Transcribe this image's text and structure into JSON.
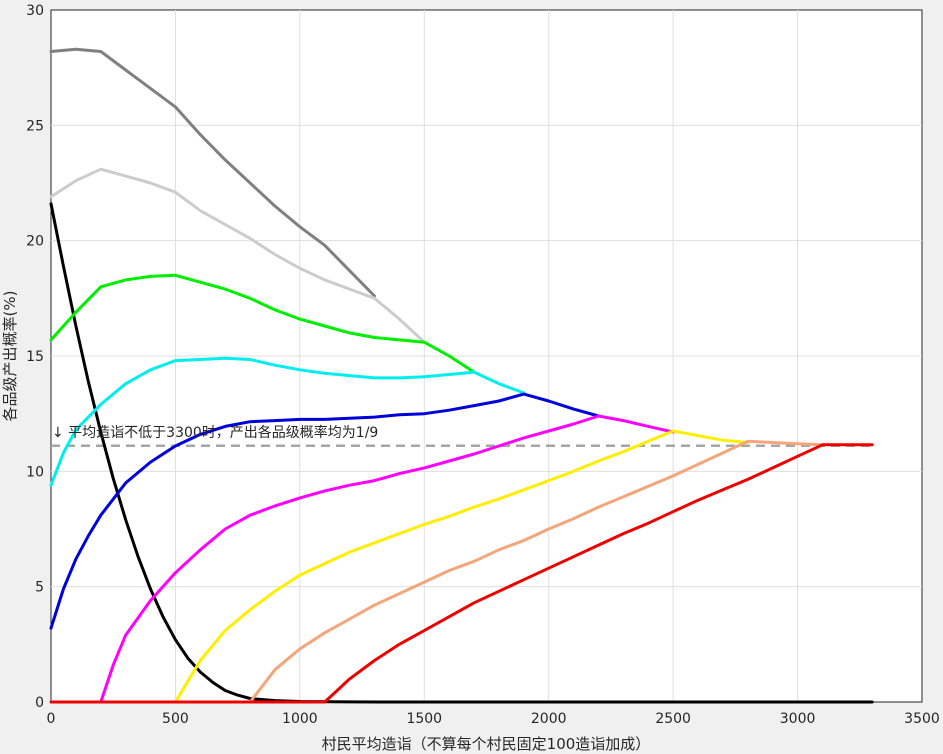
{
  "chart_data": {
    "type": "line",
    "title": "",
    "xlabel": "村民平均造诣（不算每个村民固定100造诣加成）",
    "ylabel": "各品级产出概率(%)",
    "xlim": [
      0,
      3500
    ],
    "ylim": [
      0,
      30
    ],
    "xticks": [
      "0",
      "500",
      "1000",
      "1500",
      "2000",
      "2500",
      "3000",
      "3500"
    ],
    "yticks": [
      "0",
      "5",
      "10",
      "15",
      "20",
      "25",
      "30"
    ],
    "grid": true,
    "annotation": "↓ 平均造诣不低于3300时，产出各品级概率均为1/9",
    "reference_line": {
      "y": 11.11,
      "x": [
        0,
        3300
      ],
      "color": "#a6a6a6",
      "style": "dashed"
    },
    "series": [
      {
        "color": "#000000",
        "points": [
          [
            0,
            21.6
          ],
          [
            50,
            18.9
          ],
          [
            100,
            16.3
          ],
          [
            150,
            13.9
          ],
          [
            200,
            11.7
          ],
          [
            250,
            9.7
          ],
          [
            300,
            7.9
          ],
          [
            350,
            6.3
          ],
          [
            400,
            4.9
          ],
          [
            450,
            3.7
          ],
          [
            500,
            2.7
          ],
          [
            550,
            1.9
          ],
          [
            600,
            1.3
          ],
          [
            650,
            0.85
          ],
          [
            700,
            0.5
          ],
          [
            750,
            0.3
          ],
          [
            800,
            0.15
          ],
          [
            900,
            0.06
          ],
          [
            1000,
            0.02
          ],
          [
            1200,
            0.005
          ],
          [
            1500,
            0
          ],
          [
            2000,
            0
          ],
          [
            2500,
            0
          ],
          [
            3000,
            0
          ],
          [
            3300,
            0
          ]
        ]
      },
      {
        "color": "#808080",
        "points": [
          [
            0,
            28.2
          ],
          [
            100,
            28.3
          ],
          [
            200,
            28.2
          ],
          [
            300,
            27.4
          ],
          [
            400,
            26.6
          ],
          [
            500,
            25.8
          ],
          [
            600,
            24.6
          ],
          [
            700,
            23.5
          ],
          [
            800,
            22.5
          ],
          [
            900,
            21.5
          ],
          [
            1000,
            20.6
          ],
          [
            1100,
            19.8
          ],
          [
            1200,
            18.7
          ],
          [
            1300,
            17.6
          ]
        ]
      },
      {
        "color": "#cccccc",
        "points": [
          [
            0,
            21.9
          ],
          [
            100,
            22.6
          ],
          [
            200,
            23.1
          ],
          [
            300,
            22.8
          ],
          [
            400,
            22.5
          ],
          [
            500,
            22.1
          ],
          [
            600,
            21.3
          ],
          [
            700,
            20.7
          ],
          [
            800,
            20.1
          ],
          [
            900,
            19.4
          ],
          [
            1000,
            18.8
          ],
          [
            1100,
            18.3
          ],
          [
            1200,
            17.9
          ],
          [
            1300,
            17.5
          ],
          [
            1400,
            16.6
          ],
          [
            1500,
            15.6
          ]
        ]
      },
      {
        "color": "#00ee00",
        "points": [
          [
            0,
            15.7
          ],
          [
            100,
            16.9
          ],
          [
            200,
            18.0
          ],
          [
            300,
            18.3
          ],
          [
            400,
            18.45
          ],
          [
            500,
            18.5
          ],
          [
            600,
            18.2
          ],
          [
            700,
            17.9
          ],
          [
            800,
            17.5
          ],
          [
            900,
            17.0
          ],
          [
            1000,
            16.6
          ],
          [
            1100,
            16.3
          ],
          [
            1200,
            16.0
          ],
          [
            1300,
            15.8
          ],
          [
            1400,
            15.7
          ],
          [
            1500,
            15.6
          ],
          [
            1600,
            15.0
          ],
          [
            1700,
            14.3
          ]
        ]
      },
      {
        "color": "#00eeee",
        "points": [
          [
            0,
            9.4
          ],
          [
            50,
            10.8
          ],
          [
            100,
            11.8
          ],
          [
            200,
            12.9
          ],
          [
            300,
            13.8
          ],
          [
            400,
            14.4
          ],
          [
            500,
            14.8
          ],
          [
            600,
            14.85
          ],
          [
            700,
            14.9
          ],
          [
            800,
            14.85
          ],
          [
            900,
            14.6
          ],
          [
            1000,
            14.4
          ],
          [
            1100,
            14.25
          ],
          [
            1200,
            14.15
          ],
          [
            1300,
            14.05
          ],
          [
            1400,
            14.05
          ],
          [
            1500,
            14.1
          ],
          [
            1600,
            14.2
          ],
          [
            1700,
            14.3
          ],
          [
            1800,
            13.8
          ],
          [
            1900,
            13.4
          ]
        ]
      },
      {
        "color": "#0000dd",
        "points": [
          [
            0,
            3.2
          ],
          [
            50,
            4.9
          ],
          [
            100,
            6.2
          ],
          [
            150,
            7.2
          ],
          [
            200,
            8.1
          ],
          [
            300,
            9.5
          ],
          [
            400,
            10.4
          ],
          [
            500,
            11.1
          ],
          [
            600,
            11.6
          ],
          [
            700,
            11.95
          ],
          [
            800,
            12.15
          ],
          [
            900,
            12.2
          ],
          [
            1000,
            12.25
          ],
          [
            1100,
            12.25
          ],
          [
            1200,
            12.3
          ],
          [
            1300,
            12.35
          ],
          [
            1400,
            12.45
          ],
          [
            1500,
            12.5
          ],
          [
            1600,
            12.65
          ],
          [
            1700,
            12.85
          ],
          [
            1800,
            13.05
          ],
          [
            1900,
            13.35
          ],
          [
            2000,
            13.05
          ],
          [
            2100,
            12.7
          ],
          [
            2200,
            12.4
          ]
        ]
      },
      {
        "color": "#ff00ff",
        "points": [
          [
            200,
            0
          ],
          [
            250,
            1.6
          ],
          [
            300,
            2.9
          ],
          [
            400,
            4.4
          ],
          [
            500,
            5.6
          ],
          [
            600,
            6.6
          ],
          [
            700,
            7.5
          ],
          [
            800,
            8.1
          ],
          [
            900,
            8.5
          ],
          [
            1000,
            8.85
          ],
          [
            1100,
            9.15
          ],
          [
            1200,
            9.4
          ],
          [
            1300,
            9.6
          ],
          [
            1400,
            9.9
          ],
          [
            1500,
            10.15
          ],
          [
            1600,
            10.45
          ],
          [
            1700,
            10.75
          ],
          [
            1800,
            11.1
          ],
          [
            1900,
            11.45
          ],
          [
            2000,
            11.75
          ],
          [
            2100,
            12.05
          ],
          [
            2200,
            12.4
          ],
          [
            2300,
            12.2
          ],
          [
            2400,
            11.95
          ],
          [
            2500,
            11.7
          ]
        ]
      },
      {
        "color": "#ffee00",
        "points": [
          [
            500,
            0
          ],
          [
            550,
            0.9
          ],
          [
            600,
            1.8
          ],
          [
            700,
            3.1
          ],
          [
            800,
            4.0
          ],
          [
            900,
            4.8
          ],
          [
            1000,
            5.5
          ],
          [
            1100,
            6.0
          ],
          [
            1200,
            6.5
          ],
          [
            1300,
            6.9
          ],
          [
            1400,
            7.3
          ],
          [
            1500,
            7.7
          ],
          [
            1600,
            8.05
          ],
          [
            1700,
            8.45
          ],
          [
            1800,
            8.8
          ],
          [
            1900,
            9.2
          ],
          [
            2000,
            9.6
          ],
          [
            2100,
            10.0
          ],
          [
            2200,
            10.45
          ],
          [
            2300,
            10.85
          ],
          [
            2400,
            11.3
          ],
          [
            2500,
            11.75
          ],
          [
            2600,
            11.55
          ],
          [
            2700,
            11.35
          ],
          [
            2800,
            11.25
          ]
        ]
      },
      {
        "color": "#f4a57a",
        "points": [
          [
            800,
            0
          ],
          [
            850,
            0.7
          ],
          [
            900,
            1.4
          ],
          [
            1000,
            2.3
          ],
          [
            1100,
            3.0
          ],
          [
            1200,
            3.6
          ],
          [
            1300,
            4.2
          ],
          [
            1400,
            4.7
          ],
          [
            1500,
            5.2
          ],
          [
            1600,
            5.7
          ],
          [
            1700,
            6.1
          ],
          [
            1800,
            6.6
          ],
          [
            1900,
            7.0
          ],
          [
            2000,
            7.5
          ],
          [
            2100,
            7.95
          ],
          [
            2200,
            8.45
          ],
          [
            2300,
            8.9
          ],
          [
            2400,
            9.35
          ],
          [
            2500,
            9.8
          ],
          [
            2600,
            10.3
          ],
          [
            2700,
            10.8
          ],
          [
            2800,
            11.3
          ],
          [
            2900,
            11.25
          ],
          [
            3000,
            11.2
          ],
          [
            3100,
            11.15
          ]
        ]
      },
      {
        "color": "#ee0000",
        "points": [
          [
            0,
            0
          ],
          [
            1100,
            0
          ],
          [
            1150,
            0.5
          ],
          [
            1200,
            1.0
          ],
          [
            1300,
            1.8
          ],
          [
            1400,
            2.5
          ],
          [
            1500,
            3.1
          ],
          [
            1600,
            3.7
          ],
          [
            1700,
            4.3
          ],
          [
            1800,
            4.8
          ],
          [
            1900,
            5.3
          ],
          [
            2000,
            5.8
          ],
          [
            2100,
            6.3
          ],
          [
            2200,
            6.8
          ],
          [
            2300,
            7.3
          ],
          [
            2400,
            7.75
          ],
          [
            2500,
            8.25
          ],
          [
            2600,
            8.75
          ],
          [
            2700,
            9.2
          ],
          [
            2800,
            9.65
          ],
          [
            2900,
            10.15
          ],
          [
            3000,
            10.65
          ],
          [
            3100,
            11.15
          ],
          [
            3200,
            11.15
          ],
          [
            3300,
            11.15
          ]
        ]
      }
    ]
  }
}
